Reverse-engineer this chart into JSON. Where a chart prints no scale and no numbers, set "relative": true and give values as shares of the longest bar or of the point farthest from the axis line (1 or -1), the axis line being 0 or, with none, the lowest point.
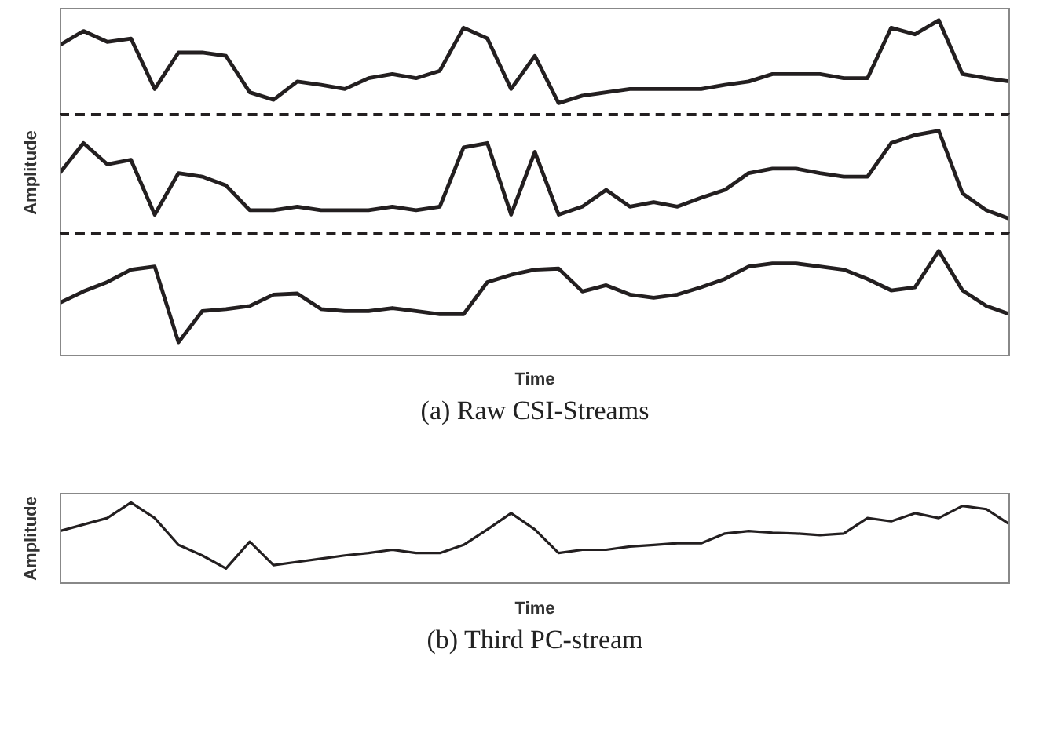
{
  "chart_data": [
    {
      "type": "line",
      "relative": true,
      "grid": false,
      "legend": false,
      "marker": "none",
      "line_style": "solid",
      "categories": [
        null,
        null,
        null,
        null,
        null,
        null,
        null,
        null,
        null,
        null,
        null,
        null,
        null,
        null,
        null,
        null,
        null,
        null,
        null,
        null,
        null,
        null,
        null,
        null,
        null,
        null,
        null,
        null,
        null,
        null,
        null,
        null,
        null,
        null,
        null,
        null,
        null,
        null,
        null,
        null,
        null
      ],
      "series": [
        {
          "color": "#231f20",
          "values": [
            0.7,
            0.87,
            0.74,
            0.78,
            0.17,
            0.61,
            0.61,
            0.57,
            0.13,
            0.04,
            0.26,
            0.22,
            0.17,
            0.3,
            0.35,
            0.3,
            0.39,
            0.91,
            0.78,
            0.17,
            0.57,
            0,
            0.09,
            0.13,
            0.17,
            0.17,
            0.17,
            0.17,
            0.22,
            0.26,
            0.35,
            0.35,
            0.35,
            0.3,
            0.3,
            0.91,
            0.83,
            1,
            0.35,
            0.3,
            0.26
          ]
        }
      ]
    },
    {
      "type": "line",
      "relative": true,
      "ylabel": "Amplitude",
      "grid": false,
      "legend": false,
      "marker": "none",
      "line_style": "solid",
      "categories": [
        null,
        null,
        null,
        null,
        null,
        null,
        null,
        null,
        null,
        null,
        null,
        null,
        null,
        null,
        null,
        null,
        null,
        null,
        null,
        null,
        null,
        null,
        null,
        null,
        null,
        null,
        null,
        null,
        null,
        null,
        null,
        null,
        null,
        null,
        null,
        null,
        null,
        null,
        null,
        null,
        null
      ],
      "series": [
        {
          "color": "#231f20",
          "values": [
            0.52,
            0.86,
            0.62,
            0.67,
            0.05,
            0.52,
            0.48,
            0.38,
            0.1,
            0.1,
            0.14,
            0.1,
            0.1,
            0.1,
            0.14,
            0.1,
            0.14,
            0.81,
            0.86,
            0.05,
            0.76,
            0.05,
            0.14,
            0.33,
            0.14,
            0.19,
            0.14,
            0.24,
            0.33,
            0.52,
            0.57,
            0.57,
            0.52,
            0.48,
            0.48,
            0.86,
            0.95,
            1,
            0.29,
            0.1,
            0
          ]
        }
      ]
    },
    {
      "type": "line",
      "relative": true,
      "xlabel": "Time",
      "grid": false,
      "legend": false,
      "marker": "none",
      "line_style": "solid",
      "annotations": [
        "(a) Raw CSI-Streams"
      ],
      "categories": [
        null,
        null,
        null,
        null,
        null,
        null,
        null,
        null,
        null,
        null,
        null,
        null,
        null,
        null,
        null,
        null,
        null,
        null,
        null,
        null,
        null,
        null,
        null,
        null,
        null,
        null,
        null,
        null,
        null,
        null,
        null,
        null,
        null,
        null,
        null,
        null,
        null,
        null,
        null,
        null,
        null
      ],
      "series": [
        {
          "color": "#231f20",
          "values": [
            0.5,
            0.61,
            0.7,
            0.82,
            0.85,
            0.12,
            0.42,
            0.44,
            0.47,
            0.58,
            0.59,
            0.44,
            0.42,
            0.42,
            0.45,
            0.42,
            0.39,
            0.39,
            0.7,
            0.77,
            0.82,
            0.83,
            0.61,
            0.67,
            0.58,
            0.55,
            0.58,
            0.65,
            0.73,
            0.85,
            0.88,
            0.88,
            0.85,
            0.82,
            0.73,
            0.62,
            0.65,
            1,
            0.62,
            0.47,
            0.39
          ]
        }
      ]
    },
    {
      "type": "line",
      "relative": true,
      "xlabel": "Time",
      "ylabel": "Amplitude",
      "grid": false,
      "legend": false,
      "marker": "none",
      "line_style": "solid",
      "annotations": [
        "(b) Third PC-stream"
      ],
      "categories": [
        null,
        null,
        null,
        null,
        null,
        null,
        null,
        null,
        null,
        null,
        null,
        null,
        null,
        null,
        null,
        null,
        null,
        null,
        null,
        null,
        null,
        null,
        null,
        null,
        null,
        null,
        null,
        null,
        null,
        null,
        null,
        null,
        null,
        null,
        null,
        null,
        null,
        null,
        null,
        null,
        null
      ],
      "series": [
        {
          "color": "#231f20",
          "values": [
            0.65,
            0.73,
            0.81,
            1,
            0.81,
            0.48,
            0.35,
            0.19,
            0.52,
            0.23,
            0.27,
            0.31,
            0.35,
            0.38,
            0.42,
            0.38,
            0.38,
            0.48,
            0.67,
            0.87,
            0.67,
            0.38,
            0.42,
            0.42,
            0.46,
            0.48,
            0.5,
            0.5,
            0.62,
            0.65,
            0.63,
            0.62,
            0.6,
            0.62,
            0.81,
            0.77,
            0.87,
            0.81,
            0.96,
            0.92,
            0.73
          ]
        }
      ]
    }
  ]
}
